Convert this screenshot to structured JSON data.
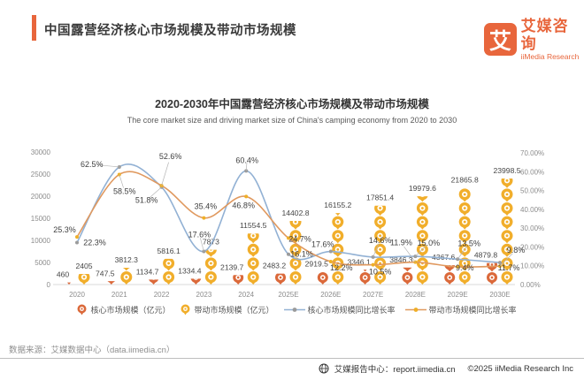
{
  "header": {
    "title": "中国露营经济核心市场规模及带动市场规模",
    "logo": {
      "mark": "艾",
      "name_cn": "艾媒咨询",
      "name_en": "iiMedia Research"
    }
  },
  "chart": {
    "title": "2020-2030年中国露营经济核心市场规模及带动市场规模",
    "subtitle": "The core market size and driving market size of China's camping economy from 2020 to 2030"
  },
  "chart_data": {
    "type": "combo: pictograph-bar + line",
    "categories": [
      "2020",
      "2021",
      "2022",
      "2023",
      "2024",
      "2025E",
      "2026E",
      "2027E",
      "2028E",
      "2029E",
      "2030E"
    ],
    "series": [
      {
        "name": "核心市场规模（亿元）",
        "type": "pictograph-bar",
        "axis": "left",
        "color": "#DB693A",
        "values": [
          460,
          747.5,
          1134.7,
          1334.4,
          2139.7,
          2483.2,
          2919.5,
          3346.1,
          3846.3,
          4367.6,
          4879.8
        ],
        "labels": [
          "460",
          "747.5",
          "1134.7",
          "1334.4",
          "2139.7",
          "2483.2",
          "2919.5",
          "3346.1",
          "3846.3",
          "4367.6",
          "4879.8"
        ]
      },
      {
        "name": "带动市场规模（亿元）",
        "type": "pictograph-bar",
        "axis": "left",
        "color": "#F1AE2B",
        "values": [
          2405,
          3812.3,
          5816.1,
          7873,
          11554.5,
          14402.8,
          16155.2,
          17851.4,
          19979.6,
          21865.8,
          23998.5
        ],
        "labels": [
          "2405",
          "3812.3",
          "5816.1",
          "7873",
          "11554.5",
          "14402.8",
          "16155.2",
          "17851.4",
          "19979.6",
          "21865.8",
          "23998.5"
        ]
      },
      {
        "name": "核心市场规模同比增长率",
        "type": "line",
        "axis": "right",
        "color": "#92B1D4",
        "values": [
          22.3,
          62.5,
          51.8,
          17.6,
          60.4,
          16.1,
          17.6,
          14.6,
          15.0,
          13.5,
          11.7
        ],
        "labels": [
          "22.3%",
          "62.5%",
          "51.8%",
          "17.6%",
          "60.4%",
          "16.1%",
          "17.6%",
          "14.6%",
          "15.0%",
          "13.5%",
          "11.7%"
        ]
      },
      {
        "name": "带动市场规模同比增长率",
        "type": "line",
        "axis": "right",
        "color": "#E0995F",
        "values": [
          25.3,
          58.5,
          52.6,
          35.4,
          46.8,
          24.7,
          12.2,
          10.5,
          11.9,
          9.4,
          9.8
        ],
        "labels": [
          "25.3%",
          "58.5%",
          "52.6%",
          "35.4%",
          "46.8%",
          "24.7%",
          "12.2%",
          "10.5%",
          "11.9%",
          "9.4%",
          "9.8%"
        ]
      }
    ],
    "left_axis": {
      "min": 0,
      "max": 30000,
      "step": 5000,
      "ticks": [
        "0",
        "5000",
        "10000",
        "15000",
        "20000",
        "25000",
        "30000"
      ]
    },
    "right_axis": {
      "min": 0,
      "max": 70,
      "ticks": [
        "0.00%",
        "10.00%",
        "20.00%",
        "30.00%",
        "40.00%",
        "50.00%",
        "60.00%",
        "70.00%"
      ]
    },
    "grid": false,
    "legend_position": "bottom"
  },
  "legend": {
    "items": [
      {
        "label": "核心市场规模（亿元）",
        "type": "pin",
        "color": "#DB693A"
      },
      {
        "label": "带动市场规模（亿元）",
        "type": "pin",
        "color": "#F1AE2B"
      },
      {
        "label": "核心市场规模同比增长率",
        "type": "line",
        "color": "#9B9B9B",
        "line": "#92B1D4"
      },
      {
        "label": "带动市场规模同比增长率",
        "type": "line",
        "color": "#EFAF27",
        "line": "#E0995F"
      }
    ]
  },
  "footer": {
    "source": "数据来源：艾媒数据中心（data.iimedia.cn）",
    "report_center": "艾媒报告中心：report.iimedia.cn",
    "copyright": "©2025  iiMedia Research  Inc"
  },
  "colors": {
    "accent": "#E8663C",
    "core_bar": "#DB693A",
    "driving_bar": "#F1AE2B",
    "core_line": "#92B1D4",
    "driving_line": "#E0995F",
    "core_marker": "#9B9B9B",
    "driving_marker": "#EFAF27",
    "axis_text": "#8C8C8C",
    "divider": "#BFBFBF",
    "text_dark": "#3A3A3A"
  }
}
